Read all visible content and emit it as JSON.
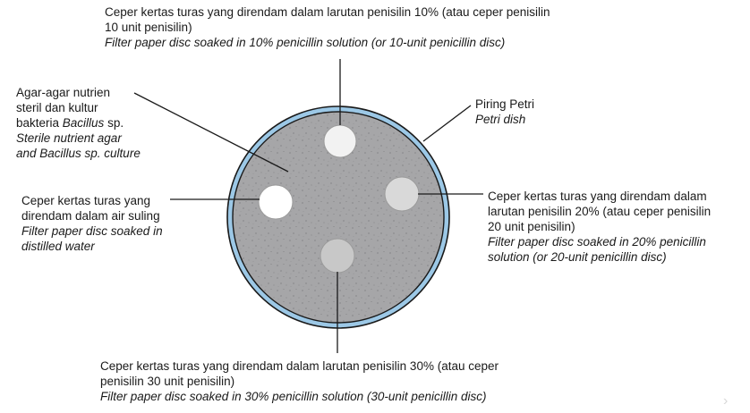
{
  "labels": {
    "disc_10": {
      "line1": "Ceper kertas turas yang direndam dalam larutan penisilin 10% (atau ceper penisilin",
      "line2": "10 unit penisilin)",
      "line3": "Filter paper disc soaked in 10% penicillin solution (or 10-unit penicillin disc)"
    },
    "agar": {
      "line1": "Agar-agar nutrien",
      "line2": "steril dan kultur",
      "line3_prefix": "bakteria ",
      "line3_italic": "Bacillus",
      "line3_suffix": " sp.",
      "line4": "Sterile nutrient agar",
      "line5": "and Bacillus sp. culture"
    },
    "petri": {
      "line1": "Piring Petri",
      "line2": "Petri dish"
    },
    "disc_water": {
      "line1": "Ceper kertas turas yang",
      "line2": "direndam  dalam air suling",
      "line3": "Filter paper disc soaked in",
      "line4": "distilled water"
    },
    "disc_20": {
      "line1": "Ceper kertas turas yang direndam dalam",
      "line2": "larutan penisilin 20% (atau ceper penisilin",
      "line3": "20 unit penisilin)",
      "line4": "Filter paper disc soaked in 20% penicillin",
      "line5": "solution (or 20-unit penicillin disc)"
    },
    "disc_30": {
      "line1": "Ceper kertas turas yang direndam dalam larutan penisilin 30% (atau ceper",
      "line2": "penisilin 30 unit penisilin)",
      "line3": "Filter  paper disc soaked in 30% penicillin solution (30-unit penicillin disc)"
    }
  },
  "colors": {
    "agar": "#a6a6a8",
    "rim": "#9cc8e6",
    "outline": "#1a1a1a",
    "disc_water": "#ffffff",
    "disc_10": "#f2f2f2",
    "disc_20": "#d9d9d9",
    "disc_30": "#c8c8c8"
  }
}
